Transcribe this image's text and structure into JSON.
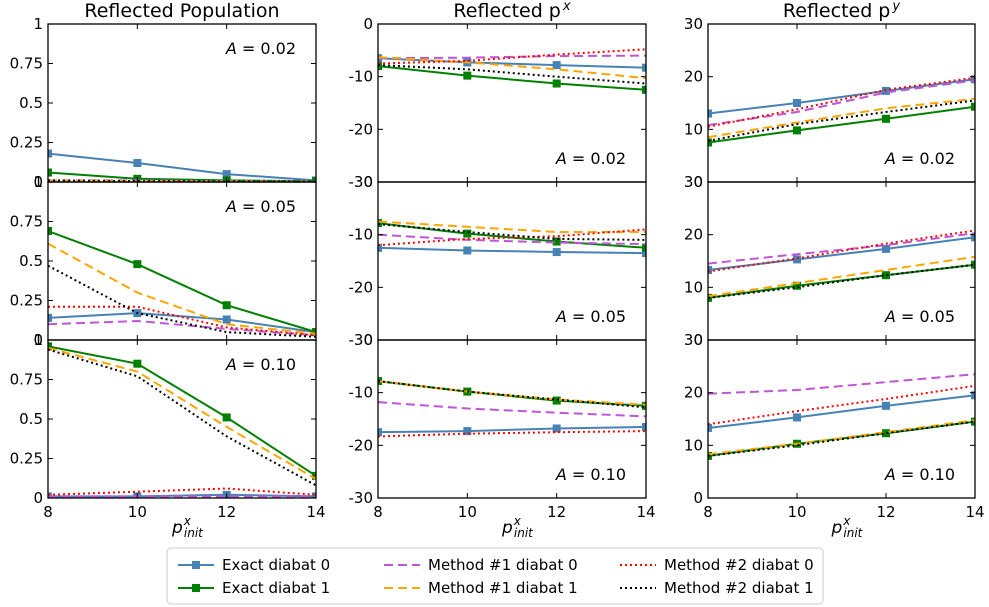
{
  "chart_data": {
    "type": "line",
    "columns": [
      {
        "title_main": "Reflected Population",
        "title_sup": "",
        "ylim": [
          0,
          1
        ],
        "yticks": [
          "0",
          "0.25",
          "0.5",
          "0.75",
          "1"
        ],
        "ytick_vals": [
          0,
          0.25,
          0.5,
          0.75,
          1
        ]
      },
      {
        "title_main": "Reflected p",
        "title_sup": "x",
        "ylim": [
          -30,
          0
        ],
        "yticks": [
          "-30",
          "-20",
          "-10",
          "0"
        ],
        "ytick_vals": [
          -30,
          -20,
          -10,
          0
        ]
      },
      {
        "title_main": "Reflected p",
        "title_sup": "y",
        "ylim": [
          0,
          30
        ],
        "yticks": [
          "0",
          "10",
          "20",
          "30"
        ],
        "ytick_vals": [
          0,
          10,
          20,
          30
        ]
      }
    ],
    "x": [
      8,
      10,
      12,
      14
    ],
    "xlim": [
      8,
      14
    ],
    "xticks": [
      "8",
      "10",
      "12",
      "14"
    ],
    "xlabel_main": "p",
    "xlabel_sup": "x",
    "xlabel_sub": "init",
    "rows": [
      {
        "annotation": "A = 0.02"
      },
      {
        "annotation": "A = 0.05"
      },
      {
        "annotation": "A = 0.10"
      }
    ],
    "series": [
      {
        "name": "Exact diabat 0",
        "color": "#4682b4",
        "dash": "solid",
        "marker": "square"
      },
      {
        "name": "Exact diabat 1",
        "color": "#008000",
        "dash": "solid",
        "marker": "square"
      },
      {
        "name": "Method #1 diabat 0",
        "color": "#bf55d8",
        "dash": "dashed",
        "marker": "none"
      },
      {
        "name": "Method #1 diabat 1",
        "color": "#ffa500",
        "dash": "dashed",
        "marker": "none"
      },
      {
        "name": "Method #2 diabat 0",
        "color": "#ff0000",
        "dash": "dotted",
        "marker": "none"
      },
      {
        "name": "Method #2 diabat 1",
        "color": "#000000",
        "dash": "dotted",
        "marker": "none"
      }
    ],
    "panels": [
      {
        "row": 0,
        "col": 0,
        "values": [
          [
            0.18,
            0.12,
            0.05,
            0.01
          ],
          [
            0.06,
            0.02,
            0.01,
            0.005
          ],
          [
            0.01,
            0.01,
            0.005,
            0.003
          ],
          [
            0.01,
            0.005,
            0.003,
            0.002
          ],
          [
            0.01,
            0.005,
            0.003,
            0.002
          ],
          [
            0.01,
            0.005,
            0.003,
            0.002
          ]
        ]
      },
      {
        "row": 0,
        "col": 1,
        "values": [
          [
            -6.5,
            -7.3,
            -7.8,
            -8.3
          ],
          [
            -8.0,
            -9.8,
            -11.3,
            -12.5
          ],
          [
            -6.5,
            -6.4,
            -6.1,
            -6.0
          ],
          [
            -6.3,
            -7.3,
            -8.6,
            -10.3
          ],
          [
            -7.5,
            -7.0,
            -5.8,
            -4.8
          ],
          [
            -7.8,
            -8.6,
            -10.0,
            -11.3
          ]
        ]
      },
      {
        "row": 0,
        "col": 2,
        "values": [
          [
            13.0,
            15.0,
            17.3,
            19.5
          ],
          [
            7.5,
            9.8,
            12.0,
            14.3
          ],
          [
            10.8,
            13.3,
            17.0,
            19.3
          ],
          [
            8.5,
            11.3,
            14.0,
            15.8
          ],
          [
            10.5,
            13.8,
            17.5,
            19.8
          ],
          [
            7.8,
            11.0,
            13.3,
            15.5
          ]
        ]
      },
      {
        "row": 1,
        "col": 0,
        "values": [
          [
            0.14,
            0.17,
            0.13,
            0.05
          ],
          [
            0.69,
            0.48,
            0.22,
            0.05
          ],
          [
            0.1,
            0.12,
            0.07,
            0.03
          ],
          [
            0.61,
            0.3,
            0.1,
            0.04
          ],
          [
            0.21,
            0.21,
            0.08,
            0.03
          ],
          [
            0.47,
            0.17,
            0.05,
            0.02
          ]
        ]
      },
      {
        "row": 1,
        "col": 1,
        "values": [
          [
            -12.5,
            -13.0,
            -13.3,
            -13.5
          ],
          [
            -7.8,
            -9.8,
            -11.3,
            -12.5
          ],
          [
            -10.0,
            -11.0,
            -11.5,
            -11.8
          ],
          [
            -7.5,
            -8.5,
            -9.5,
            -9.5
          ],
          [
            -12.0,
            -10.8,
            -10.3,
            -9.0
          ],
          [
            -8.0,
            -9.5,
            -10.8,
            -11.0
          ]
        ]
      },
      {
        "row": 1,
        "col": 2,
        "values": [
          [
            13.3,
            15.3,
            17.3,
            19.5
          ],
          [
            8.0,
            10.3,
            12.3,
            14.3
          ],
          [
            14.5,
            16.3,
            18.0,
            20.3
          ],
          [
            8.3,
            10.8,
            13.3,
            15.8
          ],
          [
            13.0,
            15.5,
            18.3,
            20.8
          ],
          [
            8.0,
            10.0,
            12.3,
            14.3
          ]
        ]
      },
      {
        "row": 2,
        "col": 0,
        "values": [
          [
            0.01,
            0.01,
            0.02,
            0.01
          ],
          [
            0.96,
            0.85,
            0.51,
            0.14
          ],
          [
            0.01,
            0.01,
            0.01,
            0.01
          ],
          [
            0.95,
            0.8,
            0.45,
            0.12
          ],
          [
            0.02,
            0.04,
            0.06,
            0.02
          ],
          [
            0.94,
            0.77,
            0.39,
            0.08
          ]
        ]
      },
      {
        "row": 2,
        "col": 1,
        "values": [
          [
            -17.5,
            -17.3,
            -16.8,
            -16.5
          ],
          [
            -7.8,
            -9.8,
            -11.5,
            -12.5
          ],
          [
            -11.8,
            -13.0,
            -13.8,
            -14.5
          ],
          [
            -7.8,
            -9.8,
            -11.3,
            -12.3
          ],
          [
            -18.3,
            -17.8,
            -17.5,
            -17.3
          ],
          [
            -7.8,
            -9.8,
            -11.3,
            -12.8
          ]
        ]
      },
      {
        "row": 2,
        "col": 2,
        "values": [
          [
            13.3,
            15.3,
            17.5,
            19.5
          ],
          [
            8.0,
            10.3,
            12.3,
            14.5
          ],
          [
            19.8,
            20.5,
            22.0,
            23.5
          ],
          [
            8.3,
            10.3,
            12.5,
            14.8
          ],
          [
            14.0,
            16.5,
            18.8,
            21.3
          ],
          [
            8.0,
            10.0,
            12.3,
            14.5
          ]
        ]
      }
    ]
  }
}
